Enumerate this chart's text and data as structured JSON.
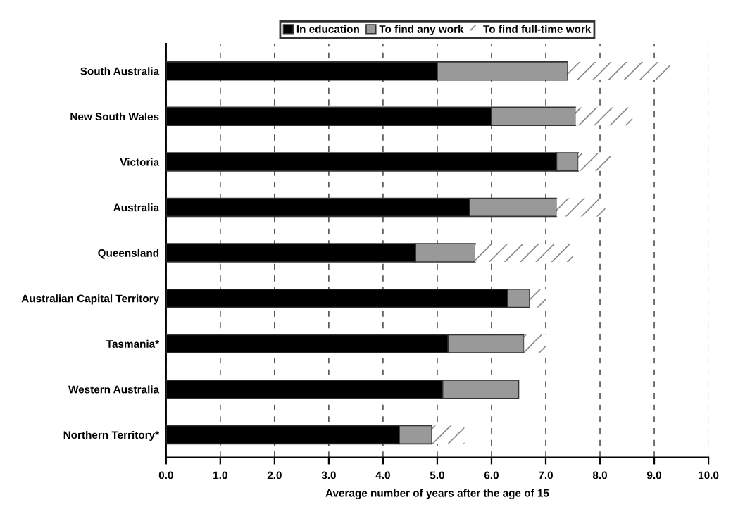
{
  "chart_data": {
    "type": "bar",
    "orientation": "horizontal",
    "stacked": true,
    "xlabel": "Average number of years after the age of 15",
    "categories": [
      "South Australia",
      "New South Wales",
      "Victoria",
      "Australia",
      "Queensland",
      "Australian Capital Territory",
      "Tasmania*",
      "Western Australia",
      "Northern Territory*"
    ],
    "series": [
      {
        "name": "In education",
        "color": "#000000",
        "values": [
          5.0,
          6.0,
          7.2,
          5.6,
          4.6,
          6.3,
          5.2,
          5.1,
          4.3
        ]
      },
      {
        "name": "To find any work",
        "color": "#999999",
        "values": [
          2.4,
          1.55,
          0.4,
          1.6,
          1.1,
          0.4,
          1.4,
          1.4,
          0.6
        ]
      },
      {
        "name": "To find full-time work",
        "color": "#ffffff",
        "values": [
          1.9,
          1.05,
          0.6,
          0.9,
          1.8,
          0.3,
          0.4,
          null,
          0.6
        ]
      }
    ],
    "xlim": [
      0,
      10
    ],
    "xticks": [
      {
        "value": 0,
        "label": "0.0"
      },
      {
        "value": 1,
        "label": "1.0"
      },
      {
        "value": 2,
        "label": "2.0"
      },
      {
        "value": 3,
        "label": "3.0"
      },
      {
        "value": 4,
        "label": "4.0"
      },
      {
        "value": 5,
        "label": "5.0"
      },
      {
        "value": 6,
        "label": "6.0"
      },
      {
        "value": 7,
        "label": "7.0"
      },
      {
        "value": 8,
        "label": "8.0"
      },
      {
        "value": 9,
        "label": "9.0"
      },
      {
        "value": 10,
        "label": "10.0"
      }
    ],
    "grid": "x",
    "legend": "top"
  }
}
